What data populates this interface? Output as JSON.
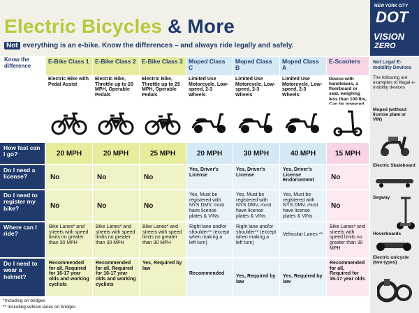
{
  "header": {
    "title_prefix": "Electric Bicycles",
    "title_suffix": " & More",
    "not_label": "Not",
    "subtitle": "everything is an e-bike. Know the differences – and always ride legally and safely.",
    "logo_top": "NEW YORK CITY",
    "logo_main": "DOT",
    "logo_vision": "VISION",
    "logo_zero": "ZERO"
  },
  "know_label": "Know the difference",
  "columns": [
    {
      "head": "E-Bike Class 1",
      "desc": "Electric Bike with Pedal Assist",
      "icon": "ebike-class1-icon"
    },
    {
      "head": "E-Bike Class 2",
      "desc": "Electric Bike, Throttle up to 20 MPH, Operable Pedals",
      "icon": "ebike-class2-icon"
    },
    {
      "head": "E-Bike Class 3",
      "desc": "Electric Bike, Throttle up to 25 MPH, Operable Pedals",
      "icon": "ebike-class3-icon"
    },
    {
      "head": "Moped Class C",
      "desc": "Limited Use Motorcycle, Low-speed, 2-3 Wheels",
      "icon": "moped-class-c-icon"
    },
    {
      "head": "Moped Class B",
      "desc": "Limited Use Motorcycle, Low-speed, 2-3 Wheels",
      "icon": "moped-class-b-icon"
    },
    {
      "head": "Moped Class A",
      "desc": "Limited Use Motorcycle, Low-speed, 2-3 Wheels",
      "icon": "moped-class-a-icon"
    },
    {
      "head": "E-Scooters",
      "desc": "Device with handlebars, a floorboard or seat, weighing less than 100 lbs, Can be powered by electric and/or human power",
      "icon": "e-scooter-icon"
    }
  ],
  "rows": {
    "speed": {
      "label": "How fast can I go?",
      "values": [
        "20 MPH",
        "20 MPH",
        "25 MPH",
        "20 MPH",
        "30 MPH",
        "40 MPH",
        "15 MPH"
      ]
    },
    "license": {
      "label": "Do I need a license?",
      "values": [
        "No",
        "No",
        "No",
        "Yes, Driver's License",
        "Yes, Driver's License",
        "Yes, Driver's License Endorsement",
        "No"
      ]
    },
    "register": {
      "label": "Do I need to register my bike?",
      "values": [
        "No",
        "No",
        "No",
        "Yes, Must be registered with NYS DMV, must have license plates & VINs",
        "Yes, Must be registered with NYS DMV, must have license plates & VINs",
        "Yes, Must be registered with NYS DMV, must have license plates & VINs",
        "No"
      ]
    },
    "ride": {
      "label": "Where can I ride?",
      "values": [
        "Bike Lanes* and streets with speed limits no greater than 30 MPH",
        "Bike Lanes* and streets with speed limits no greater than 30 MPH",
        "Bike Lanes* and streets with speed limits no greater than 30 MPH",
        "Right lane and/or shoulder** (except when making a left turn)",
        "Right lane and/or shoulder** (except when making a left turn)",
        "Vehicular Lanes **",
        "Bike Lanes* and streets with speed limits no greater than 30 MPH"
      ]
    },
    "helmet": {
      "label": "Do I need to wear a helmet?",
      "values": [
        "Recommended for all, Required for 16-17 year olds and working cyclists",
        "Recommended for all, Required for 16-17 year olds and working cyclists",
        "Yes, Required by law",
        "Recommended",
        "Yes, Required by law",
        "Yes, Required by law",
        "Recommended for all, Required for 16-17 year olds"
      ]
    }
  },
  "footnotes": [
    "*Including on bridges",
    "** Including vehicle lanes on bridges"
  ],
  "not_legal": {
    "title": "Not Legal E-mobility Devices",
    "intro": "The following are examples of illegal e-mobility devices",
    "items": [
      "Moped (without license plate or VIN)",
      "Electric Skateboard",
      "Segway",
      "Hoverboards",
      "Electric unicycle (two types)"
    ]
  },
  "colors": {
    "navy": "#1f3a6b",
    "lime": "#b9c83a",
    "green": "#e6ec9c",
    "blue": "#d5e9f4",
    "pink": "#f7d5e6"
  }
}
